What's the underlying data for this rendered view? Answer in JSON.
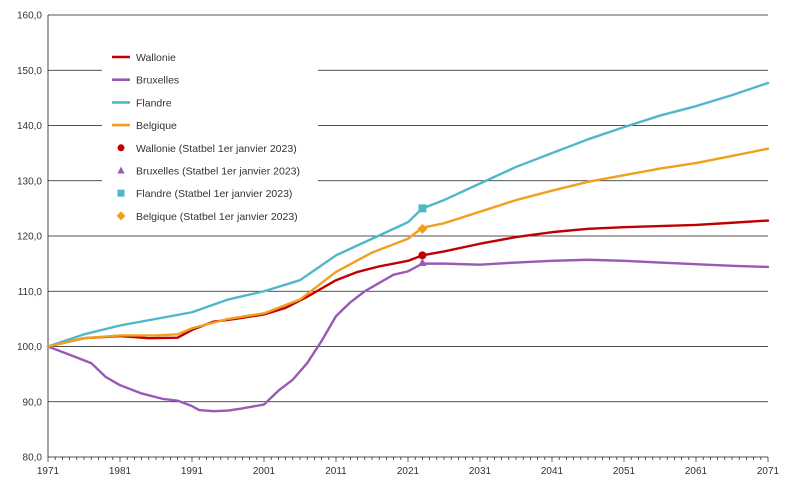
{
  "chart_data": {
    "type": "line",
    "title": "",
    "xlabel": "",
    "ylabel": "",
    "xlim": [
      1971,
      2071
    ],
    "ylim": [
      80,
      160
    ],
    "y_ticks": [
      "80,0",
      "90,0",
      "100,0",
      "110,0",
      "120,0",
      "130,0",
      "140,0",
      "150,0",
      "160,0"
    ],
    "x_ticks": [
      "1971",
      "1981",
      "1991",
      "2001",
      "2011",
      "2021",
      "2031",
      "2041",
      "2051",
      "2061",
      "2071"
    ],
    "grid": "horizontal",
    "legend_position": "top-left",
    "series": [
      {
        "name": "Wallonie",
        "color": "#c00000",
        "x": [
          1971,
          1976,
          1981,
          1985,
          1989,
          1991,
          1994,
          1997,
          2001,
          2004,
          2007,
          2011,
          2014,
          2017,
          2021,
          2023,
          2026,
          2031,
          2036,
          2041,
          2046,
          2051,
          2056,
          2061,
          2066,
          2071
        ],
        "y": [
          100.0,
          101.5,
          101.9,
          101.5,
          101.6,
          103.0,
          104.5,
          105.0,
          105.8,
          107.0,
          109.0,
          112.0,
          113.5,
          114.5,
          115.5,
          116.5,
          117.2,
          118.6,
          119.8,
          120.7,
          121.3,
          121.6,
          121.8,
          122.0,
          122.4,
          122.8
        ]
      },
      {
        "name": "Bruxelles",
        "color": "#9b59b6",
        "x": [
          1971,
          1974,
          1977,
          1979,
          1981,
          1984,
          1987,
          1989,
          1991,
          1992,
          1994,
          1996,
          1998,
          2001,
          2003,
          2005,
          2007,
          2009,
          2011,
          2013,
          2015,
          2017,
          2019,
          2021,
          2023,
          2026,
          2031,
          2036,
          2041,
          2046,
          2051,
          2056,
          2061,
          2066,
          2071
        ],
        "y": [
          100.0,
          98.5,
          97.0,
          94.5,
          93.0,
          91.5,
          90.5,
          90.2,
          89.2,
          88.5,
          88.3,
          88.4,
          88.8,
          89.5,
          92.0,
          94.0,
          97.0,
          101.0,
          105.5,
          108.0,
          110.0,
          111.5,
          113.0,
          113.6,
          115.0,
          115.0,
          114.8,
          115.2,
          115.5,
          115.7,
          115.5,
          115.2,
          114.9,
          114.6,
          114.4
        ]
      },
      {
        "name": "Flandre",
        "color": "#4fb8c8",
        "x": [
          1971,
          1976,
          1981,
          1986,
          1991,
          1996,
          2001,
          2006,
          2011,
          2016,
          2021,
          2023,
          2026,
          2031,
          2036,
          2041,
          2046,
          2051,
          2056,
          2061,
          2066,
          2071
        ],
        "y": [
          100.0,
          102.2,
          103.8,
          105.0,
          106.2,
          108.5,
          110.0,
          112.0,
          116.5,
          119.5,
          122.5,
          125.0,
          126.5,
          129.5,
          132.5,
          135.0,
          137.5,
          139.7,
          141.8,
          143.5,
          145.5,
          147.7
        ]
      },
      {
        "name": "Belgique",
        "color": "#f0a01e",
        "x": [
          1971,
          1976,
          1981,
          1986,
          1989,
          1991,
          1996,
          2001,
          2006,
          2011,
          2016,
          2021,
          2023,
          2026,
          2031,
          2036,
          2041,
          2046,
          2051,
          2056,
          2061,
          2066,
          2071
        ],
        "y": [
          100.0,
          101.5,
          102.0,
          102.0,
          102.2,
          103.3,
          105.0,
          106.0,
          108.5,
          113.5,
          117.0,
          119.5,
          121.5,
          122.3,
          124.4,
          126.5,
          128.2,
          129.8,
          131.0,
          132.2,
          133.2,
          134.5,
          135.8
        ]
      }
    ],
    "markers": [
      {
        "name": "Wallonie (Statbel 1er janvier 2023)",
        "color": "#c00000",
        "shape": "circle",
        "x": 2023,
        "y": 116.5
      },
      {
        "name": "Bruxelles (Statbel 1er janvier 2023)",
        "color": "#9b59b6",
        "shape": "triangle",
        "x": 2023,
        "y": 115.2
      },
      {
        "name": "Flandre (Statbel 1er janvier 2023)",
        "color": "#4fb8c8",
        "shape": "square",
        "x": 2023,
        "y": 125.0
      },
      {
        "name": "Belgique (Statbel 1er janvier 2023)",
        "color": "#f0a01e",
        "shape": "diamond",
        "x": 2023,
        "y": 121.3
      }
    ]
  }
}
